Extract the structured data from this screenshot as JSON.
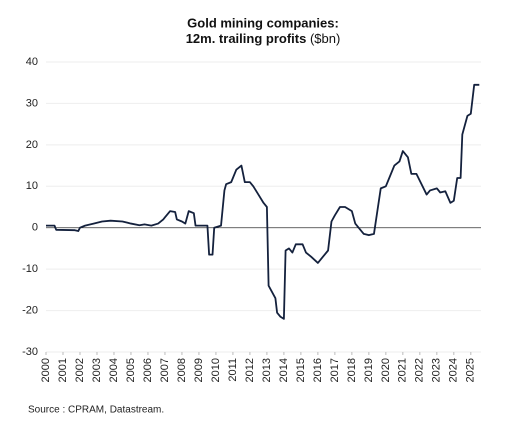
{
  "chart_data": {
    "type": "line",
    "title": [
      "Gold mining companies:",
      "12m. trailing profits"
    ],
    "unit": "($bn)",
    "source": "Source : CPRAM, Datastream.",
    "x": [
      2000,
      2000.5,
      2000.6,
      2001.7,
      2001.9,
      2002.0,
      2002.3,
      2002.8,
      2003.3,
      2003.8,
      2004.5,
      2005,
      2005.5,
      2005.8,
      2006.2,
      2006.6,
      2006.9,
      2007.0,
      2007.3,
      2007.6,
      2007.7,
      2008.0,
      2008.2,
      2008.4,
      2008.7,
      2008.8,
      2009.5,
      2009.6,
      2009.8,
      2009.9,
      2010.3,
      2010.5,
      2010.6,
      2010.9,
      2011.0,
      2011.2,
      2011.5,
      2011.7,
      2012.0,
      2012.2,
      2012.5,
      2012.8,
      2013.0,
      2013.1,
      2013.3,
      2013.5,
      2013.6,
      2013.8,
      2014.0,
      2014.1,
      2014.3,
      2014.5,
      2014.7,
      2015.1,
      2015.3,
      2015.6,
      2016.0,
      2016.3,
      2016.6,
      2016.8,
      2017.0,
      2017.3,
      2017.6,
      2018.0,
      2018.2,
      2018.5,
      2018.7,
      2019.0,
      2019.3,
      2019.5,
      2019.7,
      2020.0,
      2020.2,
      2020.5,
      2020.8,
      2021.0,
      2021.3,
      2021.5,
      2021.8,
      2022.4,
      2022.6,
      2023.0,
      2023.2,
      2023.5,
      2023.8,
      2024.0,
      2024.2,
      2024.4,
      2024.5,
      2024.8,
      2025.0,
      2025.2,
      2025.5
    ],
    "series": [
      {
        "name": "12m. trailing profits",
        "color": "#14213d",
        "values": [
          0.5,
          0.5,
          -0.5,
          -0.6,
          -0.8,
          0,
          0.5,
          1,
          1.5,
          1.7,
          1.5,
          1,
          0.6,
          0.8,
          0.5,
          1,
          2,
          2.5,
          4,
          3.8,
          2,
          1.5,
          1,
          4,
          3.5,
          0.5,
          0.5,
          -6.5,
          -6.5,
          0,
          0.5,
          9,
          10.5,
          11,
          12,
          14,
          15,
          11,
          11,
          10,
          8,
          6,
          5,
          -14,
          -15.5,
          -17,
          -20.5,
          -21.5,
          -22,
          -5.5,
          -5,
          -6,
          -4,
          -4,
          -6,
          -7,
          -8.5,
          -7,
          -5.5,
          1.5,
          3,
          5,
          5,
          4,
          1,
          -0.5,
          -1.5,
          -1.8,
          -1.5,
          4,
          9.5,
          10,
          12,
          15,
          16,
          18.5,
          17,
          13,
          13,
          8,
          9,
          9.5,
          8.5,
          8.8,
          6,
          6.5,
          12,
          12,
          22.5,
          27,
          27.5,
          34.5,
          34.5
        ]
      }
    ],
    "xlim": [
      2000,
      2025.6
    ],
    "xticks": [
      2000,
      2001,
      2002,
      2003,
      2004,
      2005,
      2006,
      2007,
      2008,
      2009,
      2010,
      2011,
      2012,
      2013,
      2014,
      2015,
      2016,
      2017,
      2018,
      2019,
      2020,
      2021,
      2022,
      2023,
      2024,
      2025
    ],
    "ylim": [
      -30,
      40
    ],
    "yticks": [
      -30,
      -20,
      -10,
      0,
      10,
      20,
      30,
      40
    ],
    "grid": true
  }
}
